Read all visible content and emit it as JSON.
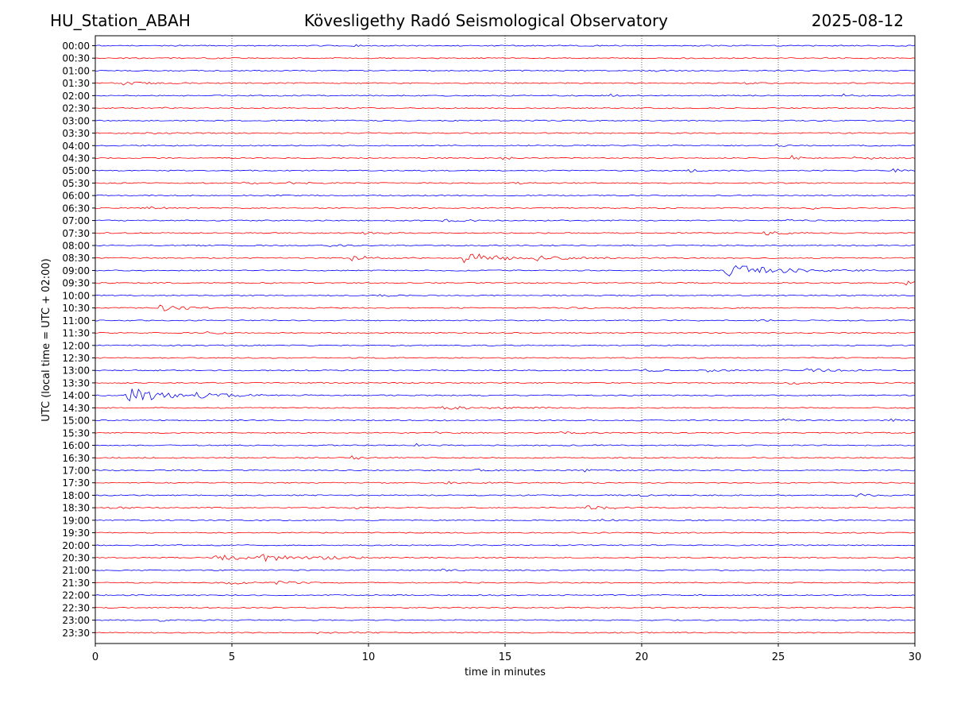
{
  "header": {
    "station": "HU_Station_ABAH",
    "observatory": "Kövesligethy Radó Seismological Observatory",
    "date": "2025-08-12"
  },
  "chart_data": {
    "type": "line",
    "title": "Kövesligethy Radó Seismological Observatory",
    "xlabel": "time in minutes",
    "ylabel": "UTC (local time = UTC + 02:00)",
    "xlim": [
      0,
      30
    ],
    "x_ticks": [
      0,
      5,
      10,
      15,
      20,
      25,
      30
    ],
    "grid": "vertical dotted lines at 5-minute intervals",
    "trace_colors": [
      "#0000ff",
      "#ff0000"
    ],
    "rows": [
      {
        "label": "00:00",
        "events": [
          [
            9.5,
            0.15,
            0.6
          ]
        ]
      },
      {
        "label": "00:30",
        "events": [
          [
            4.0,
            0.2,
            0.5
          ],
          [
            26.8,
            0.2,
            0.5
          ]
        ]
      },
      {
        "label": "01:00",
        "events": [
          [
            20.5,
            0.15,
            0.6
          ]
        ]
      },
      {
        "label": "01:30",
        "events": [
          [
            1.2,
            0.9,
            0.9
          ],
          [
            23.8,
            0.3,
            0.7
          ]
        ]
      },
      {
        "label": "02:00",
        "events": [
          [
            18.9,
            0.35,
            0.7
          ],
          [
            27.4,
            0.15,
            1.0
          ]
        ]
      },
      {
        "label": "02:30",
        "events": [
          [
            2.5,
            0.3,
            0.6
          ]
        ]
      },
      {
        "label": "03:00",
        "events": []
      },
      {
        "label": "03:30",
        "events": [
          [
            1.8,
            0.5,
            0.5
          ]
        ]
      },
      {
        "label": "04:00",
        "events": [
          [
            25.0,
            0.4,
            0.6
          ]
        ]
      },
      {
        "label": "04:30",
        "events": [
          [
            15.0,
            0.5,
            0.6
          ],
          [
            25.5,
            0.3,
            1.6
          ],
          [
            28.0,
            1.0,
            0.8
          ]
        ]
      },
      {
        "label": "05:00",
        "events": [
          [
            21.8,
            0.4,
            0.9
          ],
          [
            29.3,
            0.6,
            0.9
          ]
        ]
      },
      {
        "label": "05:30",
        "events": [
          [
            5.5,
            0.6,
            0.8
          ],
          [
            7.2,
            0.6,
            0.8
          ],
          [
            15.3,
            0.5,
            0.8
          ]
        ]
      },
      {
        "label": "06:00",
        "events": []
      },
      {
        "label": "06:30",
        "events": [
          [
            2.0,
            0.6,
            0.8
          ],
          [
            26.2,
            0.3,
            0.8
          ]
        ]
      },
      {
        "label": "07:00",
        "events": [
          [
            12.8,
            0.9,
            1.2
          ],
          [
            25.3,
            0.3,
            0.7
          ]
        ]
      },
      {
        "label": "07:30",
        "events": [
          [
            9.8,
            0.5,
            0.8
          ],
          [
            24.6,
            0.8,
            1.3
          ]
        ]
      },
      {
        "label": "08:00",
        "events": [
          [
            8.5,
            0.5,
            0.6
          ]
        ]
      },
      {
        "label": "08:30",
        "events": [
          [
            9.5,
            0.7,
            1.6
          ],
          [
            13.8,
            1.3,
            3.5
          ],
          [
            16.2,
            1.2,
            1.4
          ]
        ]
      },
      {
        "label": "09:00",
        "events": [
          [
            23.5,
            2.0,
            3.6
          ]
        ]
      },
      {
        "label": "09:30",
        "events": [
          [
            20.6,
            0.4,
            0.7
          ],
          [
            29.8,
            0.5,
            0.9
          ]
        ]
      },
      {
        "label": "10:00",
        "events": [
          [
            10.5,
            0.5,
            0.6
          ]
        ]
      },
      {
        "label": "10:30",
        "events": [
          [
            2.6,
            1.0,
            1.8
          ],
          [
            17.0,
            0.5,
            0.6
          ]
        ]
      },
      {
        "label": "11:00",
        "events": [
          [
            24.2,
            0.4,
            0.6
          ]
        ]
      },
      {
        "label": "11:30",
        "events": [
          [
            4.2,
            0.5,
            0.7
          ]
        ]
      },
      {
        "label": "12:00",
        "events": []
      },
      {
        "label": "12:30",
        "events": []
      },
      {
        "label": "13:00",
        "events": [
          [
            20.2,
            0.4,
            0.8
          ],
          [
            22.5,
            0.5,
            0.8
          ],
          [
            26.2,
            1.2,
            1.0
          ]
        ]
      },
      {
        "label": "13:30",
        "events": [
          [
            25.5,
            0.8,
            0.8
          ]
        ]
      },
      {
        "label": "14:00",
        "events": [
          [
            1.5,
            1.6,
            4.5
          ],
          [
            4.0,
            1.5,
            1.0
          ]
        ]
      },
      {
        "label": "14:30",
        "events": [
          [
            13.2,
            2.0,
            0.8
          ]
        ]
      },
      {
        "label": "15:00",
        "events": [
          [
            25.3,
            0.5,
            0.8
          ],
          [
            29.1,
            0.5,
            0.9
          ]
        ]
      },
      {
        "label": "15:30",
        "events": [
          [
            12.6,
            0.6,
            0.7
          ],
          [
            17.2,
            0.7,
            0.8
          ]
        ]
      },
      {
        "label": "16:00",
        "events": [
          [
            11.8,
            0.3,
            0.8
          ]
        ]
      },
      {
        "label": "16:30",
        "events": [
          [
            9.5,
            0.6,
            1.0
          ]
        ]
      },
      {
        "label": "17:00",
        "events": [
          [
            14.0,
            0.6,
            0.8
          ],
          [
            18.0,
            0.5,
            0.8
          ],
          [
            29.2,
            0.5,
            0.8
          ]
        ]
      },
      {
        "label": "17:30",
        "events": [
          [
            13.0,
            1.0,
            0.8
          ]
        ]
      },
      {
        "label": "18:00",
        "events": [
          [
            20.0,
            0.3,
            0.7
          ],
          [
            28.0,
            0.8,
            0.8
          ]
        ]
      },
      {
        "label": "18:30",
        "events": [
          [
            0.6,
            0.4,
            0.9
          ],
          [
            9.4,
            0.5,
            0.7
          ],
          [
            18.2,
            0.8,
            1.1
          ]
        ]
      },
      {
        "label": "19:00",
        "events": [
          [
            18.6,
            0.4,
            0.7
          ]
        ]
      },
      {
        "label": "19:30",
        "events": []
      },
      {
        "label": "20:00",
        "events": []
      },
      {
        "label": "20:30",
        "events": [
          [
            4.5,
            1.2,
            2.0
          ],
          [
            6.2,
            1.3,
            2.0
          ],
          [
            8.5,
            1.2,
            0.9
          ]
        ]
      },
      {
        "label": "21:00",
        "events": [
          [
            12.8,
            0.4,
            0.6
          ]
        ]
      },
      {
        "label": "21:30",
        "events": [
          [
            5.0,
            1.0,
            0.8
          ],
          [
            6.8,
            0.9,
            0.8
          ]
        ]
      },
      {
        "label": "22:00",
        "events": []
      },
      {
        "label": "22:30",
        "events": []
      },
      {
        "label": "23:00",
        "events": [
          [
            2.4,
            0.4,
            0.6
          ]
        ]
      },
      {
        "label": "23:30",
        "events": [
          [
            8.2,
            0.4,
            0.5
          ]
        ]
      }
    ]
  }
}
